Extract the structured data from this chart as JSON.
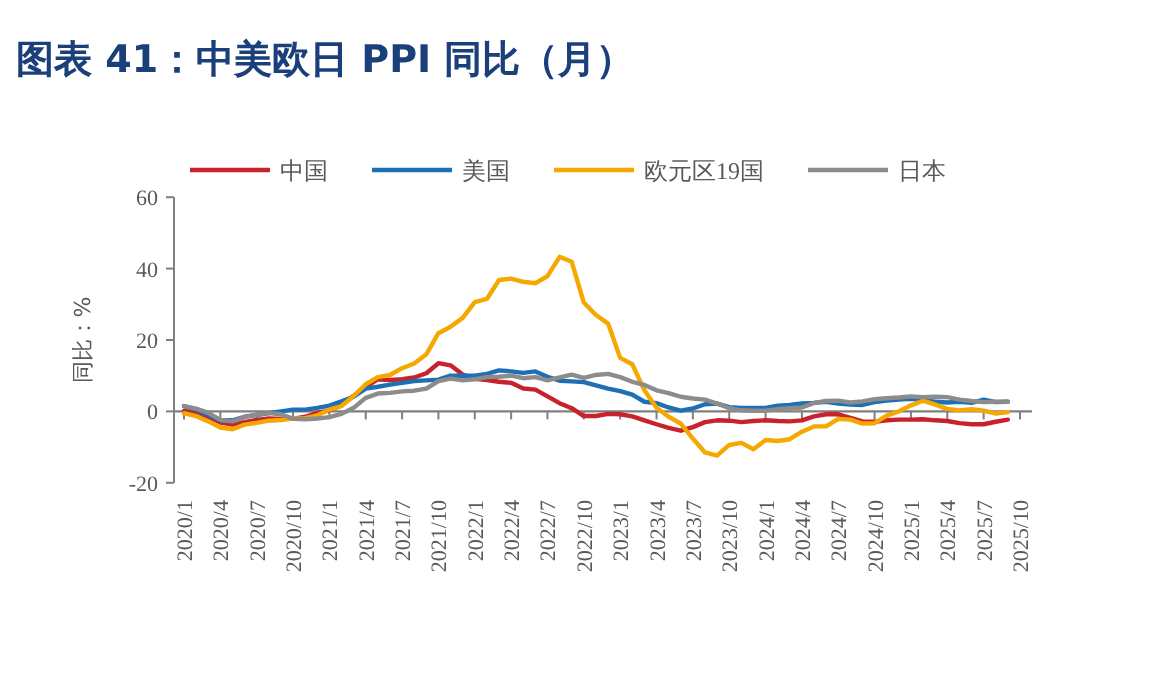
{
  "chart_data": {
    "type": "line",
    "title": "图表 41：中美欧日 PPI 同比（月）",
    "ylabel": "同比：%",
    "categories": [
      "2020/1",
      null,
      null,
      "2020/4",
      null,
      null,
      "2020/7",
      null,
      null,
      "2020/10",
      null,
      null,
      "2021/1",
      null,
      null,
      "2021/4",
      null,
      null,
      "2021/7",
      null,
      null,
      "2021/10",
      null,
      null,
      "2022/1",
      null,
      null,
      "2022/4",
      null,
      null,
      "2022/7",
      null,
      null,
      "2022/10",
      null,
      null,
      "2023/1",
      null,
      null,
      "2023/4",
      null,
      null,
      "2023/7",
      null,
      null,
      "2023/10",
      null,
      null,
      "2024/1",
      null,
      null,
      "2024/4",
      null,
      null,
      "2024/7",
      null,
      null,
      "2024/10",
      null,
      null,
      "2025/1",
      null,
      null,
      "2025/4",
      null,
      null,
      "2025/7",
      null,
      null,
      "2025/10"
    ],
    "series": [
      {
        "name": "中国",
        "color": "#c8232c",
        "values": [
          0.1,
          -0.4,
          -1.5,
          -3.1,
          -3.7,
          -3.0,
          -2.4,
          -2.0,
          -2.1,
          -2.1,
          -1.5,
          -0.4,
          0.3,
          1.7,
          4.4,
          6.8,
          9.0,
          8.8,
          9.0,
          9.5,
          10.7,
          13.5,
          12.9,
          10.3,
          9.1,
          8.8,
          8.3,
          8.0,
          6.4,
          6.1,
          4.2,
          2.3,
          0.9,
          -1.3,
          -1.3,
          -0.7,
          -0.8,
          -1.4,
          -2.5,
          -3.6,
          -4.6,
          -5.4,
          -4.4,
          -3.0,
          -2.5,
          -2.6,
          -3.0,
          -2.7,
          -2.5,
          -2.7,
          -2.8,
          -2.5,
          -1.4,
          -0.8,
          -0.8,
          -1.8,
          -2.8,
          -2.9,
          -2.5,
          -2.3,
          -2.3,
          -2.2,
          -2.5,
          -2.7,
          -3.3,
          -3.6,
          -3.6,
          -2.9,
          -2.3,
          null
        ]
      },
      {
        "name": "美国",
        "color": "#1f6fb5",
        "values": [
          1.5,
          0.5,
          -1.0,
          -2.5,
          -2.5,
          -1.5,
          -1.0,
          -0.5,
          0.0,
          0.5,
          0.5,
          1.0,
          1.6,
          2.8,
          4.1,
          6.4,
          6.9,
          7.5,
          8.0,
          8.5,
          8.7,
          8.9,
          10.0,
          10.0,
          10.0,
          10.5,
          11.5,
          11.2,
          10.8,
          11.2,
          9.7,
          8.6,
          8.4,
          8.2,
          7.3,
          6.4,
          5.7,
          4.7,
          2.7,
          2.3,
          1.1,
          0.2,
          0.8,
          2.0,
          2.2,
          1.2,
          1.0,
          1.0,
          1.0,
          1.6,
          1.8,
          2.2,
          2.4,
          2.7,
          2.2,
          1.9,
          1.8,
          2.6,
          3.0,
          3.3,
          3.5,
          3.2,
          2.7,
          2.5,
          2.7,
          2.4,
          3.3,
          2.6,
          2.7,
          null
        ]
      },
      {
        "name": "欧元区19国",
        "color": "#f5a800",
        "values": [
          -0.5,
          -1.3,
          -2.8,
          -4.5,
          -5.0,
          -3.7,
          -3.2,
          -2.6,
          -2.4,
          -2.0,
          -1.9,
          -1.1,
          0.5,
          1.5,
          4.3,
          7.6,
          9.6,
          10.2,
          12.1,
          13.4,
          16.0,
          21.9,
          23.7,
          26.2,
          30.6,
          31.5,
          36.8,
          37.2,
          36.3,
          35.9,
          37.9,
          43.3,
          41.9,
          30.5,
          27.0,
          24.6,
          15.0,
          13.2,
          5.9,
          1.0,
          -1.5,
          -3.4,
          -7.6,
          -11.5,
          -12.4,
          -9.4,
          -8.8,
          -10.6,
          -8.0,
          -8.3,
          -7.8,
          -5.7,
          -4.2,
          -4.2,
          -2.1,
          -2.3,
          -3.4,
          -3.3,
          -1.2,
          0.0,
          1.7,
          3.0,
          1.9,
          0.7,
          0.3,
          0.6,
          0.2,
          -0.6,
          -0.2,
          null
        ]
      },
      {
        "name": "日本",
        "color": "#8c8c8c",
        "values": [
          1.5,
          0.8,
          -0.4,
          -2.4,
          -2.8,
          -1.6,
          -0.9,
          -0.5,
          -0.8,
          -2.1,
          -2.2,
          -2.0,
          -1.6,
          -0.7,
          1.0,
          3.8,
          5.0,
          5.2,
          5.6,
          5.8,
          6.4,
          8.5,
          9.2,
          8.7,
          9.0,
          9.6,
          9.7,
          10.0,
          9.3,
          9.6,
          8.7,
          9.5,
          10.3,
          9.4,
          10.2,
          10.5,
          9.6,
          8.3,
          7.4,
          5.9,
          5.1,
          4.1,
          3.6,
          3.3,
          2.2,
          0.9,
          0.3,
          0.2,
          0.2,
          0.6,
          0.9,
          1.1,
          2.4,
          2.9,
          3.0,
          2.5,
          2.8,
          3.4,
          3.7,
          3.9,
          4.2,
          4.0,
          4.1,
          4.0,
          3.3,
          2.9,
          2.6,
          2.7,
          2.7,
          null
        ]
      }
    ],
    "ylim": [
      -20,
      60
    ],
    "yticks": [
      -20,
      0,
      20,
      40,
      60
    ],
    "legend": "top"
  }
}
